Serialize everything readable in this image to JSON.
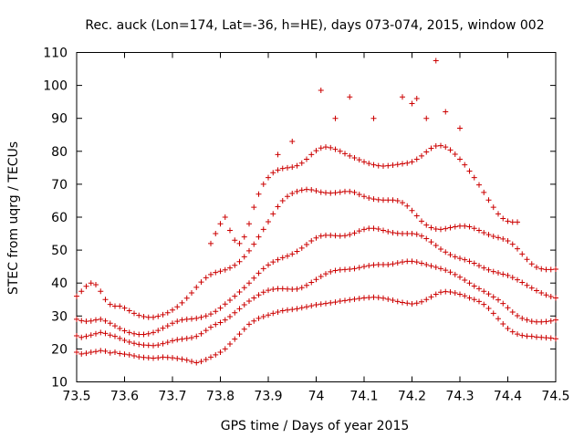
{
  "chart_data": {
    "type": "scatter",
    "title": "Rec. auck (Lon=174, Lat=-36, h=HE), days 073-074, 2015, window 002",
    "xlabel": "GPS time / Days of year 2015",
    "ylabel": "STEC from uqrg / TECUs",
    "xlim": [
      73.5,
      74.5
    ],
    "ylim": [
      10,
      110
    ],
    "xticks": [
      73.5,
      73.6,
      73.7,
      73.8,
      73.9,
      74,
      74.1,
      74.2,
      74.3,
      74.4,
      74.5
    ],
    "xtick_labels": [
      "73.5",
      "73.6",
      "73.7",
      "73.8",
      "73.9",
      "74",
      "74.1",
      "74.2",
      "74.3",
      "74.4",
      "74.5"
    ],
    "yticks": [
      10,
      20,
      30,
      40,
      50,
      60,
      70,
      80,
      90,
      100,
      110
    ],
    "ytick_labels": [
      "10",
      "20",
      "30",
      "40",
      "50",
      "60",
      "70",
      "80",
      "90",
      "100",
      "110"
    ],
    "grid": false,
    "marker": "+",
    "color": "#cc0000",
    "series": [
      {
        "x": [
          73.5,
          73.51,
          73.52,
          73.53,
          73.54,
          73.55,
          73.56,
          73.57,
          73.58,
          73.59,
          73.6,
          73.61,
          73.62,
          73.63,
          73.64,
          73.65,
          73.66,
          73.67,
          73.68,
          73.69,
          73.7,
          73.71,
          73.72,
          73.73,
          73.74,
          73.75,
          73.76,
          73.77,
          73.78,
          73.79,
          73.8,
          73.81,
          73.82,
          73.83,
          73.84,
          73.85,
          73.86,
          73.87,
          73.88,
          73.89,
          73.9,
          73.91,
          73.92,
          73.93,
          73.94,
          73.95,
          73.96,
          73.97,
          73.98,
          73.99,
          74.0,
          74.01,
          74.02,
          74.03,
          74.04,
          74.05,
          74.06,
          74.07,
          74.08,
          74.09,
          74.1,
          74.11,
          74.12,
          74.13,
          74.14,
          74.15,
          74.16,
          74.17,
          74.18,
          74.19,
          74.2,
          74.21,
          74.22,
          74.23,
          74.24,
          74.25,
          74.26,
          74.27,
          74.28,
          74.29,
          74.3,
          74.31,
          74.32,
          74.33,
          74.34,
          74.35,
          74.36,
          74.37,
          74.38,
          74.39,
          74.4,
          74.41,
          74.42,
          74.43,
          74.44,
          74.45,
          74.46,
          74.47,
          74.48,
          74.49,
          74.5
        ],
        "y": [
          19,
          18.5,
          18.7,
          19,
          19.2,
          19.5,
          19.3,
          18.8,
          19,
          18.6,
          18.4,
          18.2,
          17.9,
          17.6,
          17.4,
          17.3,
          17.2,
          17.3,
          17.5,
          17.4,
          17.3,
          17.1,
          16.9,
          16.6,
          16.2,
          15.8,
          16.2,
          16.8,
          17.5,
          18.2,
          19,
          20,
          21.5,
          23,
          24.5,
          26,
          27.5,
          28.5,
          29.3,
          29.8,
          30.3,
          30.8,
          31.2,
          31.6,
          31.8,
          32,
          32.2,
          32.5,
          32.8,
          33.1,
          33.4,
          33.6,
          33.8,
          34,
          34.2,
          34.5,
          34.7,
          34.9,
          35.1,
          35.3,
          35.5,
          35.6,
          35.7,
          35.6,
          35.4,
          35.1,
          34.8,
          34.4,
          34.1,
          33.9,
          33.7,
          33.9,
          34.3,
          35,
          35.8,
          36.6,
          37.2,
          37.4,
          37.3,
          37,
          36.6,
          36.1,
          35.5,
          35,
          34.4,
          33.5,
          32.3,
          30.8,
          29.2,
          27.6,
          26.2,
          25.2,
          24.5,
          24.1,
          23.9,
          23.8,
          23.6,
          23.5,
          23.4,
          23.3,
          23.1
        ]
      },
      {
        "x": [
          73.5,
          73.51,
          73.52,
          73.53,
          73.54,
          73.55,
          73.56,
          73.57,
          73.58,
          73.59,
          73.6,
          73.61,
          73.62,
          73.63,
          73.64,
          73.65,
          73.66,
          73.67,
          73.68,
          73.69,
          73.7,
          73.71,
          73.72,
          73.73,
          73.74,
          73.75,
          73.76,
          73.77,
          73.78,
          73.79,
          73.8,
          73.81,
          73.82,
          73.83,
          73.84,
          73.85,
          73.86,
          73.87,
          73.88,
          73.89,
          73.9,
          73.91,
          73.92,
          73.93,
          73.94,
          73.95,
          73.96,
          73.97,
          73.98,
          73.99,
          74.0,
          74.01,
          74.02,
          74.03,
          74.04,
          74.05,
          74.06,
          74.07,
          74.08,
          74.09,
          74.1,
          74.11,
          74.12,
          74.13,
          74.14,
          74.15,
          74.16,
          74.17,
          74.18,
          74.19,
          74.2,
          74.21,
          74.22,
          74.23,
          74.24,
          74.25,
          74.26,
          74.27,
          74.28,
          74.29,
          74.3,
          74.31,
          74.32,
          74.33,
          74.34,
          74.35,
          74.36,
          74.37,
          74.38,
          74.39,
          74.4,
          74.41,
          74.42,
          74.43,
          74.44,
          74.45,
          74.46,
          74.47,
          74.48,
          74.49,
          74.5
        ],
        "y": [
          24,
          23.5,
          23.8,
          24.2,
          24.6,
          25,
          24.7,
          24.2,
          23.8,
          23.2,
          22.6,
          22.1,
          21.7,
          21.4,
          21.2,
          21.1,
          21,
          21.2,
          21.6,
          22,
          22.5,
          22.8,
          23,
          23.2,
          23.4,
          23.8,
          24.6,
          25.6,
          26.6,
          27.4,
          28,
          28.8,
          29.8,
          31,
          32.2,
          33.4,
          34.5,
          35.5,
          36.4,
          37.2,
          37.8,
          38.1,
          38.3,
          38.3,
          38.2,
          38.1,
          38.2,
          38.6,
          39.3,
          40.2,
          41.1,
          42,
          42.8,
          43.4,
          43.8,
          44,
          44.1,
          44.2,
          44.4,
          44.7,
          45,
          45.3,
          45.5,
          45.6,
          45.6,
          45.6,
          45.8,
          46.1,
          46.4,
          46.6,
          46.6,
          46.4,
          46,
          45.6,
          45.2,
          44.8,
          44.4,
          43.9,
          43.3,
          42.6,
          41.8,
          40.9,
          40,
          39.1,
          38.3,
          37.5,
          36.7,
          35.8,
          34.9,
          33.8,
          32.5,
          31.2,
          30.1,
          29.3,
          28.8,
          28.4,
          28.2,
          28.2,
          28.3,
          28.5,
          28.8
        ]
      },
      {
        "x": [
          73.5,
          73.51,
          73.52,
          73.53,
          73.54,
          73.55,
          73.56,
          73.57,
          73.58,
          73.59,
          73.6,
          73.61,
          73.62,
          73.63,
          73.64,
          73.65,
          73.66,
          73.67,
          73.68,
          73.69,
          73.7,
          73.71,
          73.72,
          73.73,
          73.74,
          73.75,
          73.76,
          73.77,
          73.78,
          73.79,
          73.8,
          73.81,
          73.82,
          73.83,
          73.84,
          73.85,
          73.86,
          73.87,
          73.88,
          73.89,
          73.9,
          73.91,
          73.92,
          73.93,
          73.94,
          73.95,
          73.96,
          73.97,
          73.98,
          73.99,
          74.0,
          74.01,
          74.02,
          74.03,
          74.04,
          74.05,
          74.06,
          74.07,
          74.08,
          74.09,
          74.1,
          74.11,
          74.12,
          74.13,
          74.14,
          74.15,
          74.16,
          74.17,
          74.18,
          74.19,
          74.2,
          74.21,
          74.22,
          74.23,
          74.24,
          74.25,
          74.26,
          74.27,
          74.28,
          74.29,
          74.3,
          74.31,
          74.32,
          74.33,
          74.34,
          74.35,
          74.36,
          74.37,
          74.38,
          74.39,
          74.4,
          74.41,
          74.42,
          74.43,
          74.44,
          74.45,
          74.46,
          74.47,
          74.48,
          74.49,
          74.5
        ],
        "y": [
          29,
          28.6,
          28.4,
          28.5,
          28.8,
          29,
          28.5,
          27.8,
          27,
          26.2,
          25.5,
          25,
          24.6,
          24.4,
          24.4,
          24.6,
          25,
          25.6,
          26.3,
          27,
          27.8,
          28.4,
          28.8,
          29,
          29.1,
          29.3,
          29.6,
          30,
          30.6,
          31.4,
          32.4,
          33.6,
          34.8,
          36,
          37.3,
          38.6,
          40,
          41.5,
          43,
          44.4,
          45.5,
          46.4,
          47.1,
          47.7,
          48.2,
          48.8,
          49.6,
          50.6,
          51.7,
          52.8,
          53.7,
          54.3,
          54.5,
          54.5,
          54.4,
          54.3,
          54.4,
          54.7,
          55.2,
          55.8,
          56.3,
          56.6,
          56.6,
          56.4,
          56,
          55.6,
          55.3,
          55.1,
          55,
          55,
          55,
          54.8,
          54.3,
          53.5,
          52.5,
          51.4,
          50.3,
          49.4,
          48.6,
          48,
          47.5,
          47.1,
          46.6,
          46,
          45.3,
          44.6,
          44,
          43.5,
          43.1,
          42.7,
          42.3,
          41.7,
          41,
          40.2,
          39.3,
          38.5,
          37.7,
          37,
          36.4,
          35.9,
          35.5
        ]
      },
      {
        "x": [
          73.5,
          73.51,
          73.52,
          73.53,
          73.54,
          73.55,
          73.56,
          73.57,
          73.58,
          73.59,
          73.6,
          73.61,
          73.62,
          73.63,
          73.64,
          73.65,
          73.66,
          73.67,
          73.68,
          73.69,
          73.7,
          73.71,
          73.72,
          73.73,
          73.74,
          73.75,
          73.76,
          73.77,
          73.78,
          73.79,
          73.8,
          73.81,
          73.82,
          73.83,
          73.84,
          73.85,
          73.86,
          73.87,
          73.88,
          73.89,
          73.9,
          73.91,
          73.92,
          73.93,
          73.94,
          73.95,
          73.96,
          73.97,
          73.98,
          73.99,
          74.0,
          74.01,
          74.02,
          74.03,
          74.04,
          74.05,
          74.06,
          74.07,
          74.08,
          74.09,
          74.1,
          74.11,
          74.12,
          74.13,
          74.14,
          74.15,
          74.16,
          74.17,
          74.18,
          74.19,
          74.2,
          74.21,
          74.22,
          74.23,
          74.24,
          74.25,
          74.26,
          74.27,
          74.28,
          74.29,
          74.3,
          74.31,
          74.32,
          74.33,
          74.34,
          74.35,
          74.36,
          74.37,
          74.38,
          74.39,
          74.4,
          74.41,
          74.42,
          74.43,
          74.44,
          74.45,
          74.46,
          74.47,
          74.48,
          74.49,
          74.5
        ],
        "y": [
          36,
          37.5,
          39,
          40,
          39.5,
          37.5,
          35,
          33.5,
          33,
          33,
          32.4,
          31.6,
          30.8,
          30.2,
          29.8,
          29.6,
          29.6,
          29.9,
          30.4,
          31,
          31.8,
          32.8,
          34,
          35.4,
          37,
          38.7,
          40.3,
          41.6,
          42.6,
          43.2,
          43.6,
          44,
          44.6,
          45.4,
          46.5,
          48,
          49.8,
          51.8,
          54,
          56.3,
          58.6,
          61,
          63.2,
          65,
          66.3,
          67.2,
          67.8,
          68.2,
          68.4,
          68.3,
          68,
          67.6,
          67.4,
          67.3,
          67.4,
          67.6,
          67.8,
          67.8,
          67.5,
          66.9,
          66.3,
          65.8,
          65.5,
          65.3,
          65.2,
          65.2,
          65.2,
          65,
          64.4,
          63.4,
          62,
          60.4,
          58.8,
          57.6,
          56.8,
          56.4,
          56.3,
          56.5,
          56.8,
          57.1,
          57.3,
          57.3,
          57.1,
          56.6,
          56,
          55.3,
          54.7,
          54.2,
          53.8,
          53.4,
          52.8,
          51.8,
          50.4,
          48.8,
          47.2,
          45.8,
          44.8,
          44.3,
          44.1,
          44.1,
          44.2
        ]
      },
      {
        "x": [
          73.78,
          73.79,
          73.8,
          73.81,
          73.82,
          73.83,
          73.84,
          73.85,
          73.86,
          73.87,
          73.88,
          73.89,
          73.9,
          73.91,
          73.92,
          73.93,
          73.94,
          73.95,
          73.96,
          73.97,
          73.98,
          73.99,
          74.0,
          74.01,
          74.02,
          74.03,
          74.04,
          74.05,
          74.06,
          74.07,
          74.08,
          74.09,
          74.1,
          74.11,
          74.12,
          74.13,
          74.14,
          74.15,
          74.16,
          74.17,
          74.18,
          74.19,
          74.2,
          74.21,
          74.22,
          74.23,
          74.24,
          74.25,
          74.26,
          74.27,
          74.28,
          74.29,
          74.3,
          74.31,
          74.32,
          74.33,
          74.34,
          74.35,
          74.36,
          74.37,
          74.38,
          74.39,
          74.4,
          74.41,
          74.42
        ],
        "y": [
          52,
          55,
          58,
          60,
          56,
          53,
          52,
          54,
          58,
          63,
          67,
          70,
          72,
          73.5,
          74.3,
          74.8,
          75,
          75.2,
          75.6,
          76.4,
          77.6,
          79,
          80.2,
          81,
          81.3,
          81.1,
          80.6,
          80,
          79.3,
          78.6,
          78,
          77.4,
          76.8,
          76.3,
          75.9,
          75.6,
          75.5,
          75.6,
          75.8,
          76,
          76.2,
          76.4,
          76.8,
          77.6,
          78.6,
          79.8,
          80.9,
          81.6,
          81.7,
          81.3,
          80.4,
          79.1,
          77.6,
          75.9,
          74,
          72,
          69.8,
          67.5,
          65.2,
          63,
          61,
          59.6,
          58.8,
          58.5,
          58.5
        ]
      },
      {
        "x": [
          73.92,
          73.95,
          74.01,
          74.04,
          74.07,
          74.12,
          74.18,
          74.2,
          74.21,
          74.23,
          74.25,
          74.27,
          74.3
        ],
        "y": [
          79,
          83,
          98.5,
          90,
          96.5,
          90,
          96.5,
          94.5,
          96,
          90,
          107.5,
          92,
          87
        ]
      }
    ]
  }
}
